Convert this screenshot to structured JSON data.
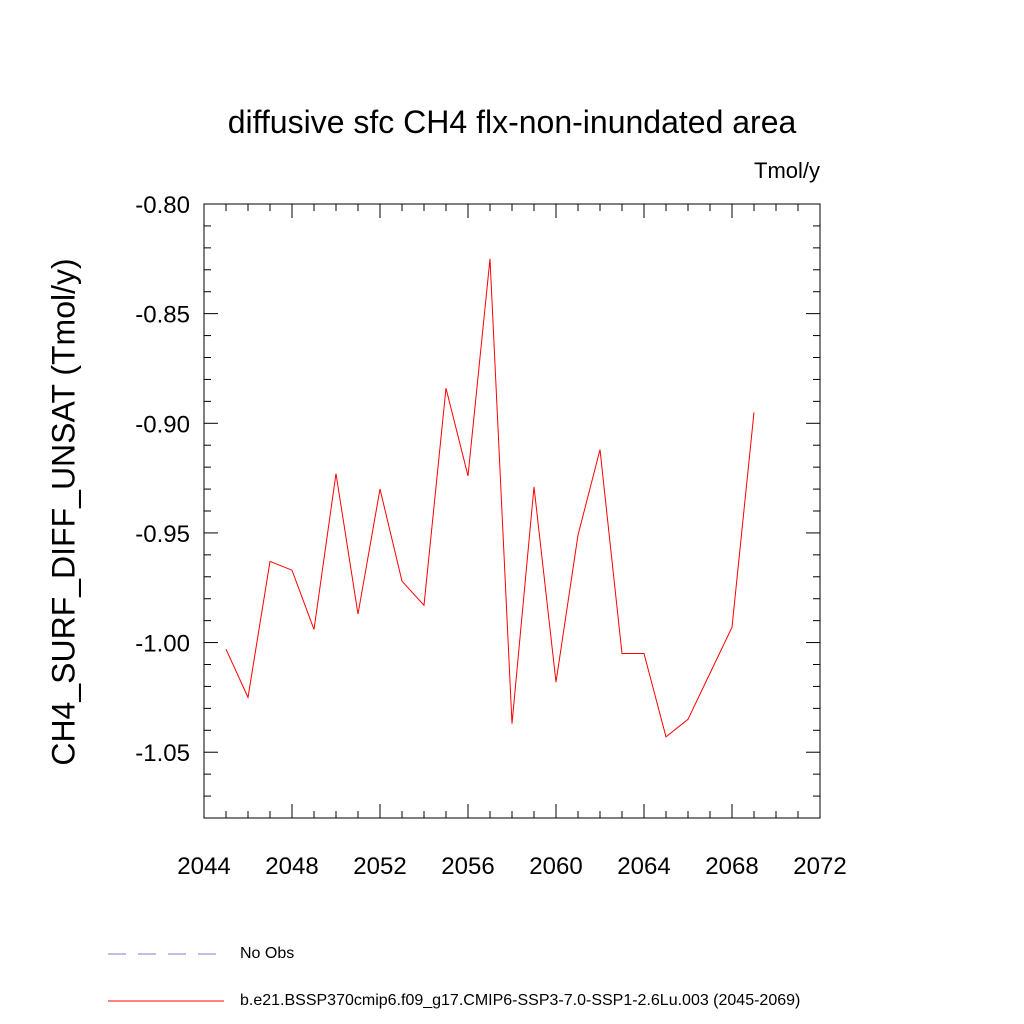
{
  "chart_data": {
    "type": "line",
    "title": "diffusive sfc CH4 flx-non-inundated area",
    "units_label": "Tmol/y",
    "ylabel": "CH4_SURF_DIFF_UNSAT  (Tmol/y)",
    "xlabel": "",
    "xlim": [
      2044,
      2072
    ],
    "ylim": [
      -1.08,
      -0.8
    ],
    "x_ticks": [
      2044,
      2048,
      2052,
      2056,
      2060,
      2064,
      2068,
      2072
    ],
    "x_tick_labels": [
      "2044",
      "2048",
      "2052",
      "2056",
      "2060",
      "2064",
      "2068",
      "2072"
    ],
    "y_ticks": [
      -0.8,
      -0.85,
      -0.9,
      -0.95,
      -1.0,
      -1.05
    ],
    "y_tick_labels": [
      "-0.80",
      "-0.85",
      "-0.90",
      "-0.95",
      "-1.00",
      "-1.05"
    ],
    "grid": false,
    "legend_position": "bottom-left, below plot",
    "series": [
      {
        "name": "b.e21.BSSP370cmip6.f09_g17.CMIP6-SSP3-7.0-SSP1-2.6Lu.003 (2045-2069)",
        "color": "#ff0000",
        "x": [
          2045,
          2046,
          2047,
          2048,
          2049,
          2050,
          2051,
          2052,
          2053,
          2054,
          2055,
          2056,
          2057,
          2058,
          2059,
          2060,
          2061,
          2062,
          2063,
          2064,
          2065,
          2066,
          2067,
          2068,
          2069
        ],
        "values": [
          -1.003,
          -1.025,
          -0.963,
          -0.967,
          -0.994,
          -0.923,
          -0.987,
          -0.93,
          -0.972,
          -0.983,
          -0.884,
          -0.924,
          -0.825,
          -1.037,
          -0.929,
          -1.018,
          -0.951,
          -0.912,
          -1.005,
          -1.005,
          -1.043,
          -1.035,
          -1.014,
          -0.993,
          -0.895
        ]
      }
    ],
    "legend": [
      {
        "label": "No Obs",
        "color": "#8877cc",
        "style": "dashed"
      },
      {
        "label": "b.e21.BSSP370cmip6.f09_g17.CMIP6-SSP3-7.0-SSP1-2.6Lu.003 (2045-2069)",
        "color": "#ff0000",
        "style": "solid"
      }
    ]
  }
}
